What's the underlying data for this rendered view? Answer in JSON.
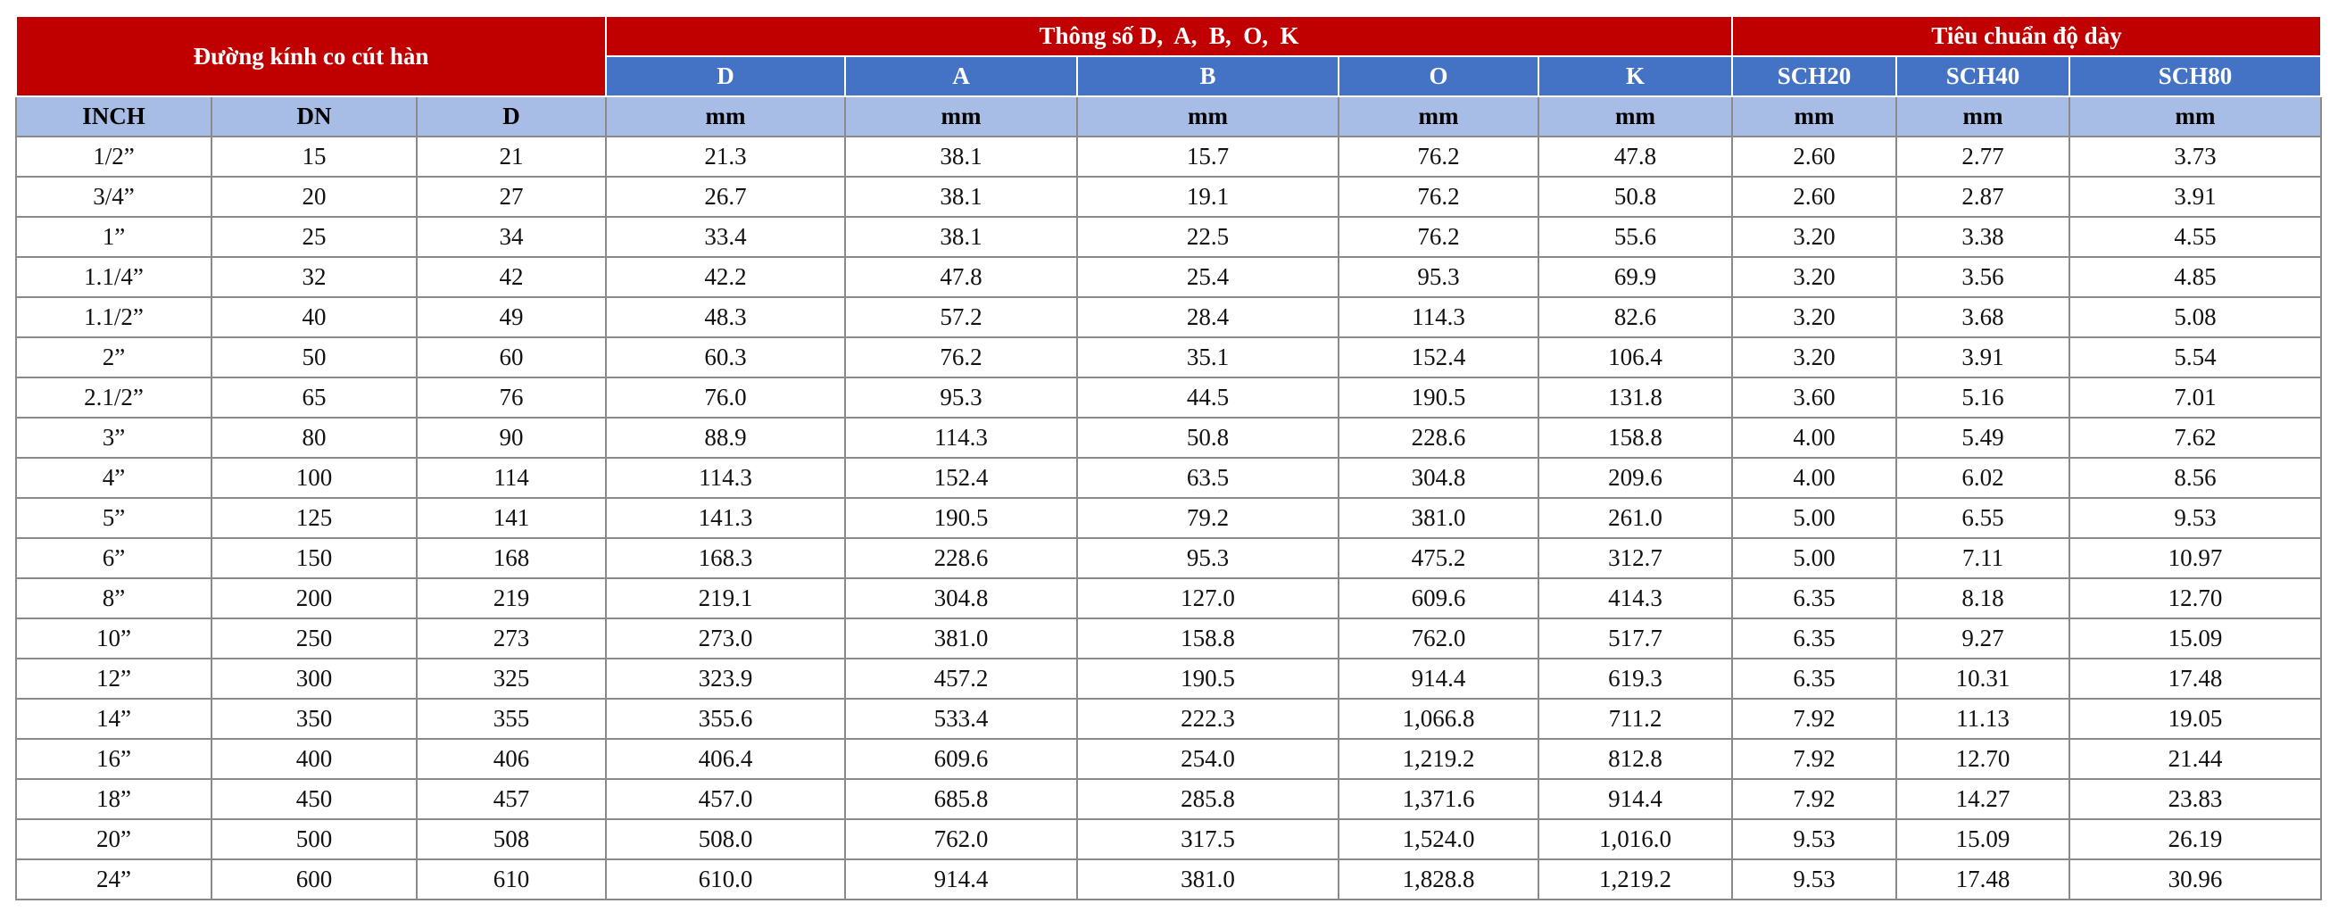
{
  "header": {
    "groups": [
      "Đường kính co cút hàn",
      "Thông số D,  A,  B,  O,  K",
      "Tiêu chuẩn độ dày"
    ],
    "columns": [
      "D",
      "A",
      "B",
      "O",
      "K",
      "SCH20",
      "SCH40",
      "SCH80"
    ],
    "units": [
      "INCH",
      "DN",
      "D",
      "mm",
      "mm",
      "mm",
      "mm",
      "mm",
      "mm",
      "mm",
      "mm"
    ]
  },
  "table": {
    "rows": [
      [
        "1/2”",
        "15",
        "21",
        "21.3",
        "38.1",
        "15.7",
        "76.2",
        "47.8",
        "2.60",
        "2.77",
        "3.73"
      ],
      [
        "3/4”",
        "20",
        "27",
        "26.7",
        "38.1",
        "19.1",
        "76.2",
        "50.8",
        "2.60",
        "2.87",
        "3.91"
      ],
      [
        "1”",
        "25",
        "34",
        "33.4",
        "38.1",
        "22.5",
        "76.2",
        "55.6",
        "3.20",
        "3.38",
        "4.55"
      ],
      [
        "1.1/4”",
        "32",
        "42",
        "42.2",
        "47.8",
        "25.4",
        "95.3",
        "69.9",
        "3.20",
        "3.56",
        "4.85"
      ],
      [
        "1.1/2”",
        "40",
        "49",
        "48.3",
        "57.2",
        "28.4",
        "114.3",
        "82.6",
        "3.20",
        "3.68",
        "5.08"
      ],
      [
        "2”",
        "50",
        "60",
        "60.3",
        "76.2",
        "35.1",
        "152.4",
        "106.4",
        "3.20",
        "3.91",
        "5.54"
      ],
      [
        "2.1/2”",
        "65",
        "76",
        "76.0",
        "95.3",
        "44.5",
        "190.5",
        "131.8",
        "3.60",
        "5.16",
        "7.01"
      ],
      [
        "3”",
        "80",
        "90",
        "88.9",
        "114.3",
        "50.8",
        "228.6",
        "158.8",
        "4.00",
        "5.49",
        "7.62"
      ],
      [
        "4”",
        "100",
        "114",
        "114.3",
        "152.4",
        "63.5",
        "304.8",
        "209.6",
        "4.00",
        "6.02",
        "8.56"
      ],
      [
        "5”",
        "125",
        "141",
        "141.3",
        "190.5",
        "79.2",
        "381.0",
        "261.0",
        "5.00",
        "6.55",
        "9.53"
      ],
      [
        "6”",
        "150",
        "168",
        "168.3",
        "228.6",
        "95.3",
        "475.2",
        "312.7",
        "5.00",
        "7.11",
        "10.97"
      ],
      [
        "8”",
        "200",
        "219",
        "219.1",
        "304.8",
        "127.0",
        "609.6",
        "414.3",
        "6.35",
        "8.18",
        "12.70"
      ],
      [
        "10”",
        "250",
        "273",
        "273.0",
        "381.0",
        "158.8",
        "762.0",
        "517.7",
        "6.35",
        "9.27",
        "15.09"
      ],
      [
        "12”",
        "300",
        "325",
        "323.9",
        "457.2",
        "190.5",
        "914.4",
        "619.3",
        "6.35",
        "10.31",
        "17.48"
      ],
      [
        "14”",
        "350",
        "355",
        "355.6",
        "533.4",
        "222.3",
        "1,066.8",
        "711.2",
        "7.92",
        "11.13",
        "19.05"
      ],
      [
        "16”",
        "400",
        "406",
        "406.4",
        "609.6",
        "254.0",
        "1,219.2",
        "812.8",
        "7.92",
        "12.70",
        "21.44"
      ],
      [
        "18”",
        "450",
        "457",
        "457.0",
        "685.8",
        "285.8",
        "1,371.6",
        "914.4",
        "7.92",
        "14.27",
        "23.83"
      ],
      [
        "20”",
        "500",
        "508",
        "508.0",
        "762.0",
        "317.5",
        "1,524.0",
        "1,016.0",
        "9.53",
        "15.09",
        "26.19"
      ],
      [
        "24”",
        "600",
        "610",
        "610.0",
        "914.4",
        "381.0",
        "1,828.8",
        "1,219.2",
        "9.53",
        "17.48",
        "30.96"
      ]
    ]
  }
}
